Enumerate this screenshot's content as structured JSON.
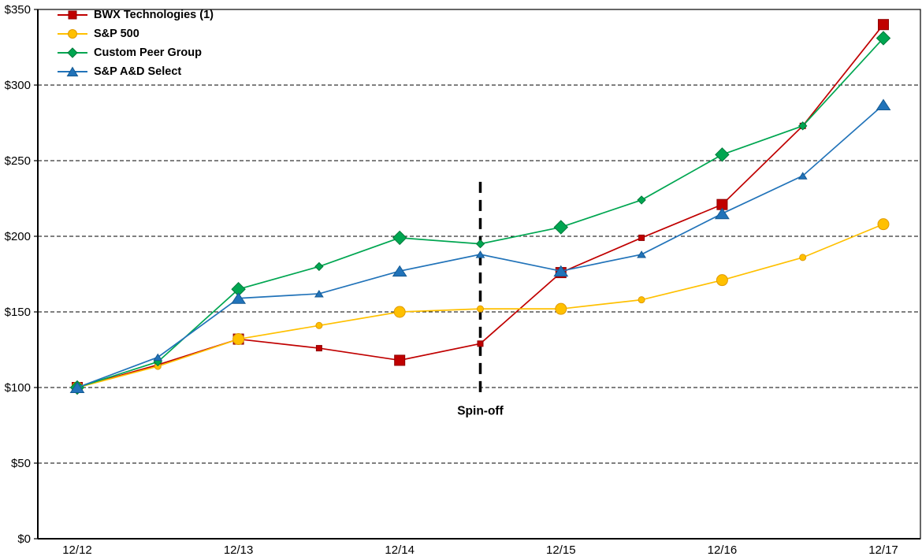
{
  "chart_data": {
    "type": "line",
    "title": "",
    "x_tick_labels": [
      "12/12",
      "12/13",
      "12/14",
      "12/15",
      "12/16",
      "12/17"
    ],
    "points_per_year": 2,
    "y_tick_labels": [
      "$0",
      "$50",
      "$100",
      "$150",
      "$200",
      "$250",
      "$300",
      "$350"
    ],
    "ylim": [
      0,
      350
    ],
    "y_tick_step": 50,
    "grid": "horizontal-dashed",
    "legend_position": "top-left-inside",
    "series": [
      {
        "name": "BWX Technologies (1)",
        "marker": "square",
        "color": "#c00000",
        "edge_color": "#900000",
        "values": [
          100,
          115,
          132,
          126,
          118,
          129,
          176,
          199,
          221,
          273,
          340
        ]
      },
      {
        "name": "S&P 500",
        "marker": "circle",
        "color": "#ffc000",
        "edge_color": "#e09a00",
        "values": [
          100,
          114,
          132,
          141,
          150,
          152,
          152,
          158,
          171,
          186,
          208
        ]
      },
      {
        "name": "Custom Peer Group",
        "marker": "diamond",
        "color": "#00a651",
        "edge_color": "#00793a",
        "values": [
          100,
          117,
          165,
          180,
          199,
          195,
          206,
          224,
          254,
          273,
          331
        ]
      },
      {
        "name": "S&P A&D Select",
        "marker": "triangle",
        "color": "#2173b9",
        "edge_color": "#155a93",
        "values": [
          100,
          120,
          159,
          162,
          177,
          188,
          177,
          188,
          215,
          240,
          287
        ]
      }
    ],
    "annotation": {
      "label": "Spin-off",
      "x_index": 5,
      "line_top_value": 236,
      "line_bottom_value": 93
    }
  }
}
